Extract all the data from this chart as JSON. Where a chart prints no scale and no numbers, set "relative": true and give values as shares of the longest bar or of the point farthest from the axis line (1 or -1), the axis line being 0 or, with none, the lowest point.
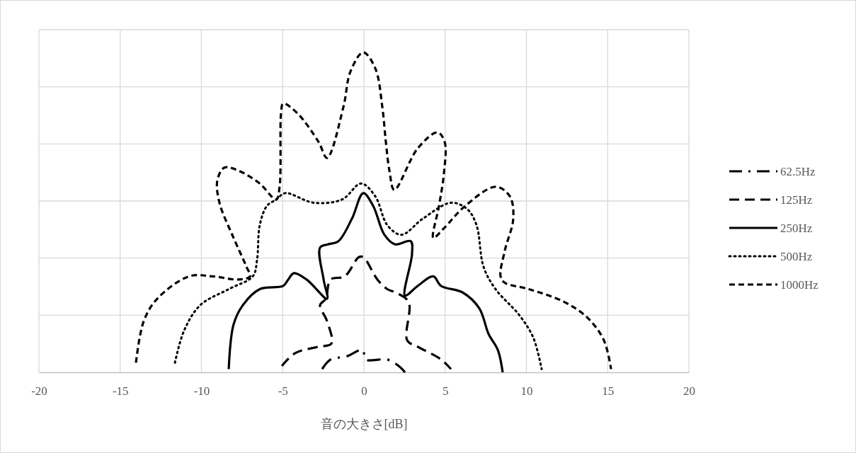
{
  "chart_data": {
    "type": "line",
    "xlabel": "音の大きさ[dB]",
    "relative": true,
    "xlim": [
      -20,
      20
    ],
    "xticks": [
      -20,
      -15,
      -10,
      -5,
      0,
      5,
      10,
      15,
      20
    ],
    "grid": true,
    "legend": "right",
    "marker": "none",
    "series": [
      {
        "name": "62.5Hz",
        "color": "#000000",
        "line_style": "dashdot",
        "x": [
          -2.57,
          -2.05,
          -1.05,
          -0.09,
          0.13,
          1.44,
          2.14,
          2.53
        ],
        "values": [
          0.01,
          0.04,
          0.05,
          0.07,
          0.04,
          0.04,
          0.02,
          0.0
        ]
      },
      {
        "name": "125Hz",
        "color": "#000000",
        "line_style": "dashed",
        "x": [
          -5.05,
          -4.23,
          -2.79,
          -2.0,
          -2.27,
          -2.7,
          -2.35,
          -2.05,
          -1.18,
          -0.31,
          -0.04,
          0.83,
          1.44,
          1.92,
          2.75,
          2.66,
          3.31,
          4.75,
          5.36
        ],
        "values": [
          0.02,
          0.06,
          0.08,
          0.09,
          0.16,
          0.21,
          0.23,
          0.29,
          0.3,
          0.36,
          0.36,
          0.29,
          0.26,
          0.25,
          0.22,
          0.1,
          0.08,
          0.04,
          0.01
        ]
      },
      {
        "name": "250Hz",
        "color": "#000000",
        "line_style": "solid",
        "x": [
          -8.32,
          -8.02,
          -7.45,
          -6.41,
          -4.97,
          -4.66,
          -4.31,
          -3.53,
          -2.27,
          -2.48,
          -2.7,
          -2.22,
          -1.57,
          -0.74,
          -0.04,
          0.57,
          1.26,
          1.92,
          2.88,
          2.96,
          2.53,
          3.31,
          4.27,
          4.75,
          6.06,
          7.1,
          7.67,
          8.24,
          8.54
        ],
        "values": [
          0.01,
          0.15,
          0.21,
          0.26,
          0.27,
          0.29,
          0.31,
          0.29,
          0.23,
          0.29,
          0.39,
          0.4,
          0.41,
          0.48,
          0.56,
          0.52,
          0.43,
          0.4,
          0.41,
          0.37,
          0.24,
          0.27,
          0.3,
          0.27,
          0.25,
          0.2,
          0.12,
          0.07,
          0.0
        ]
      },
      {
        "name": "500Hz",
        "color": "#000000",
        "line_style": "dotted",
        "x": [
          -11.63,
          -11.07,
          -10.07,
          -8.32,
          -6.84,
          -6.58,
          -6.41,
          -5.97,
          -5.4,
          -4.84,
          -3.09,
          -1.35,
          -0.17,
          0.7,
          1.44,
          2.31,
          3.62,
          5.36,
          6.36,
          6.93,
          7.36,
          8.1,
          9.54,
          10.41,
          10.94
        ],
        "values": [
          0.03,
          0.13,
          0.21,
          0.26,
          0.3,
          0.35,
          0.46,
          0.52,
          0.54,
          0.56,
          0.53,
          0.54,
          0.59,
          0.55,
          0.46,
          0.43,
          0.48,
          0.53,
          0.51,
          0.46,
          0.33,
          0.26,
          0.18,
          0.11,
          0.01
        ]
      },
      {
        "name": "1000Hz",
        "color": "#000000",
        "line_style": "shortdash",
        "x": [
          -14.03,
          -13.55,
          -12.72,
          -10.76,
          -9.32,
          -7.71,
          -7.01,
          -7.23,
          -8.02,
          -8.89,
          -9.02,
          -8.58,
          -7.71,
          -6.41,
          -5.4,
          -5.19,
          -5.1,
          -4.97,
          -4.1,
          -2.79,
          -2.27,
          -1.26,
          -0.83,
          -0.04,
          0.7,
          1.13,
          1.35,
          1.57,
          1.87,
          3.31,
          4.53,
          4.97,
          4.92,
          4.62,
          4.27,
          4.92,
          6.23,
          8.1,
          8.98,
          9.19,
          8.67,
          8.41,
          8.67,
          10.15,
          12.33,
          13.77,
          14.77,
          15.21
        ],
        "values": [
          0.03,
          0.16,
          0.23,
          0.3,
          0.3,
          0.29,
          0.3,
          0.33,
          0.42,
          0.53,
          0.6,
          0.64,
          0.63,
          0.59,
          0.54,
          0.58,
          0.81,
          0.84,
          0.81,
          0.72,
          0.67,
          0.83,
          0.94,
          1.0,
          0.95,
          0.83,
          0.72,
          0.63,
          0.57,
          0.7,
          0.75,
          0.72,
          0.62,
          0.52,
          0.42,
          0.45,
          0.52,
          0.58,
          0.55,
          0.48,
          0.38,
          0.3,
          0.28,
          0.26,
          0.22,
          0.17,
          0.1,
          0.01
        ]
      }
    ]
  }
}
